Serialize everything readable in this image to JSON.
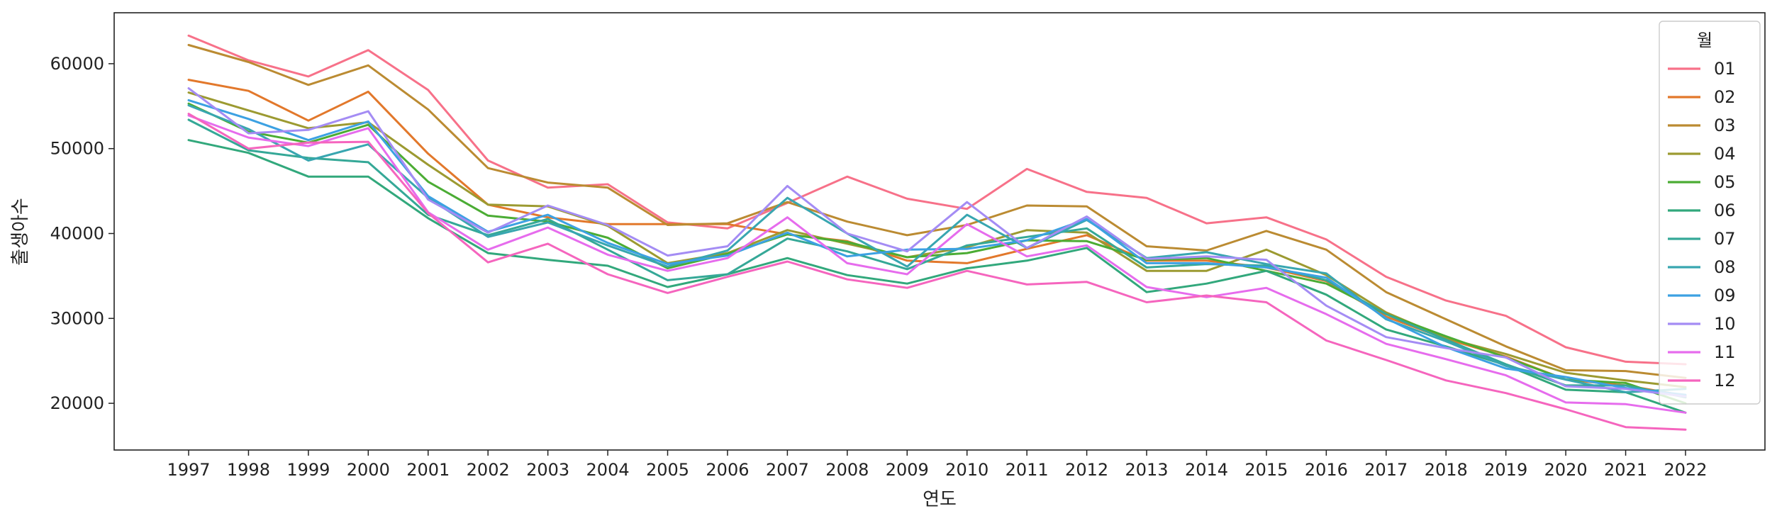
{
  "chart_data": {
    "type": "line",
    "xlabel": "연도",
    "ylabel": "출생아수",
    "ylim": [
      14500,
      66000
    ],
    "yticks": [
      20000,
      30000,
      40000,
      50000,
      60000
    ],
    "x": [
      "1997",
      "1998",
      "1999",
      "2000",
      "2001",
      "2002",
      "2003",
      "2004",
      "2005",
      "2006",
      "2007",
      "2008",
      "2009",
      "2010",
      "2011",
      "2012",
      "2013",
      "2014",
      "2015",
      "2016",
      "2017",
      "2018",
      "2019",
      "2020",
      "2021",
      "2022"
    ],
    "legend": {
      "title": "월",
      "placement": "top-right"
    },
    "grid": false,
    "series": [
      {
        "name": "01",
        "color": "#f77189",
        "values": [
          63300,
          60400,
          58500,
          61600,
          56900,
          48600,
          45400,
          45800,
          41300,
          40600,
          43600,
          46700,
          44100,
          42900,
          47600,
          44900,
          44200,
          41200,
          41900,
          39300,
          34900,
          32100,
          30300,
          26600,
          24900,
          24600
        ]
      },
      {
        "name": "02",
        "color": "#e2782b",
        "values": [
          58100,
          56800,
          53300,
          56700,
          49400,
          43400,
          41900,
          41100,
          41100,
          41100,
          39900,
          39100,
          36800,
          36500,
          38200,
          39800,
          36800,
          36800,
          36000,
          34400,
          30200,
          27600,
          25500,
          22800,
          22100,
          20900
        ]
      },
      {
        "name": "03",
        "color": "#bb8b32",
        "values": [
          62200,
          60200,
          57500,
          59800,
          54600,
          47700,
          46000,
          45400,
          41000,
          41200,
          43700,
          41400,
          39800,
          41000,
          43300,
          43200,
          38500,
          38000,
          40300,
          38100,
          33100,
          29900,
          26700,
          23900,
          23800,
          23000
        ]
      },
      {
        "name": "04",
        "color": "#9c9a31",
        "values": [
          56600,
          54500,
          52400,
          53100,
          48100,
          43400,
          43200,
          40900,
          36500,
          37700,
          40400,
          38800,
          37200,
          38400,
          40400,
          40100,
          35600,
          35600,
          38100,
          35100,
          30700,
          27700,
          25800,
          23600,
          22700,
          21900
        ]
      },
      {
        "name": "05",
        "color": "#4bac34",
        "values": [
          55300,
          52000,
          50700,
          52800,
          46100,
          42100,
          41400,
          39500,
          35900,
          37600,
          39900,
          39000,
          37200,
          37700,
          39200,
          39100,
          36900,
          37100,
          35600,
          34100,
          30500,
          27900,
          25400,
          22800,
          22400,
          20000
        ]
      },
      {
        "name": "06",
        "color": "#32a87c",
        "values": [
          51000,
          49500,
          46700,
          46700,
          41800,
          37700,
          36900,
          36200,
          33700,
          35200,
          37100,
          35100,
          34100,
          35900,
          36800,
          38300,
          33100,
          34100,
          35600,
          32800,
          28700,
          26700,
          24500,
          21600,
          21300,
          18900
        ]
      },
      {
        "name": "07",
        "color": "#35a897",
        "values": [
          53400,
          49800,
          48900,
          48400,
          42200,
          39800,
          41700,
          38100,
          34500,
          35200,
          39400,
          37900,
          35800,
          38600,
          39600,
          40600,
          36000,
          36400,
          36200,
          34500,
          30500,
          27500,
          24600,
          22100,
          22100,
          20700
        ]
      },
      {
        "name": "08",
        "color": "#38a6b0",
        "values": [
          55100,
          52300,
          48600,
          50500,
          44200,
          39600,
          41300,
          38600,
          36100,
          38000,
          44200,
          40000,
          36100,
          42200,
          38300,
          41600,
          37100,
          37800,
          36400,
          35300,
          29900,
          27300,
          24400,
          22800,
          21300,
          21700
        ]
      },
      {
        "name": "09",
        "color": "#3ca1e2",
        "values": [
          55700,
          53500,
          51000,
          53200,
          44400,
          40200,
          42200,
          38900,
          36400,
          37400,
          40100,
          37300,
          38100,
          38200,
          39200,
          41700,
          36500,
          36500,
          36000,
          34800,
          30000,
          26600,
          24100,
          23100,
          21800,
          21000
        ]
      },
      {
        "name": "10",
        "color": "#a48cf4",
        "values": [
          57100,
          51800,
          52200,
          54400,
          44000,
          40100,
          43300,
          41000,
          37400,
          38500,
          45600,
          40000,
          37900,
          43700,
          38300,
          42000,
          37000,
          37300,
          36900,
          31500,
          27800,
          26500,
          25400,
          22000,
          21700,
          20800
        ]
      },
      {
        "name": "11",
        "color": "#e66ced",
        "values": [
          53900,
          51300,
          50300,
          52400,
          42500,
          38100,
          40700,
          37500,
          35600,
          37100,
          41900,
          36500,
          35200,
          41100,
          37300,
          38600,
          33700,
          32500,
          33600,
          30500,
          27000,
          25200,
          23300,
          20100,
          19900,
          18900
        ]
      },
      {
        "name": "12",
        "color": "#f565be",
        "values": [
          54100,
          50000,
          50700,
          50800,
          42400,
          36600,
          38800,
          35200,
          33000,
          34900,
          36700,
          34600,
          33600,
          35600,
          34000,
          34300,
          31900,
          32700,
          31900,
          27400,
          25100,
          22700,
          21200,
          19300,
          17200,
          16900
        ]
      }
    ]
  }
}
